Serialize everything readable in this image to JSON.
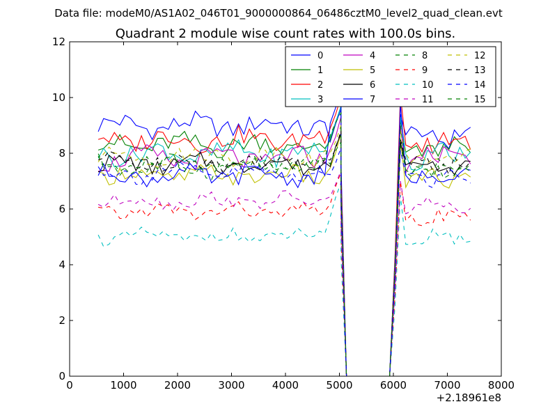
{
  "figure": {
    "suptitle": "Data file: modeM0/AS1A02_046T01_9000000864_06486cztM0_level2_quad_clean.evt",
    "title": "Quadrant 2 module wise count rates with 100.0s bins."
  },
  "chart_data": {
    "type": "line",
    "title": "Quadrant 2 module wise count rates with 100.0s bins.",
    "xlabel": "",
    "ylabel": "",
    "x_offset_label": "+2.18961e8",
    "xlim": [
      0,
      8000
    ],
    "ylim": [
      0,
      12
    ],
    "x_ticks": [
      0,
      1000,
      2000,
      3000,
      4000,
      5000,
      6000,
      7000,
      8000
    ],
    "y_ticks": [
      0,
      2,
      4,
      6,
      8,
      10,
      12
    ],
    "x_tick_labels": [
      "0",
      "1000",
      "2000",
      "3000",
      "4000",
      "5000",
      "6000",
      "7000",
      "8000"
    ],
    "y_tick_labels": [
      "0",
      "2",
      "4",
      "6",
      "8",
      "10",
      "12"
    ],
    "grid": false,
    "legend_position": "upper-right",
    "x_segments": {
      "seg1": {
        "start": 530,
        "step": 100,
        "count": 46
      },
      "gap_points": [
        5030,
        5130,
        5930,
        6030
      ],
      "seg2": {
        "start": 6130,
        "step": 100,
        "count": 14
      }
    },
    "series": [
      {
        "name": "0",
        "color": "#0000ff",
        "dash": "solid",
        "base1": 9.0,
        "base2": 8.6,
        "amp": 0.35,
        "peak": 9.5,
        "peak2": 9.4
      },
      {
        "name": "1",
        "color": "#008000",
        "dash": "solid",
        "base1": 8.3,
        "base2": 8.2,
        "amp": 0.35,
        "peak": 9.6,
        "peak2": 9.2
      },
      {
        "name": "2",
        "color": "#ff0000",
        "dash": "solid",
        "base1": 8.5,
        "base2": 8.4,
        "amp": 0.35,
        "peak": 9.9,
        "peak2": 10.1
      },
      {
        "name": "3",
        "color": "#00bfbf",
        "dash": "solid",
        "base1": 8.0,
        "base2": 7.9,
        "amp": 0.35,
        "peak": 9.7,
        "peak2": 9.3
      },
      {
        "name": "4",
        "color": "#bf00bf",
        "dash": "solid",
        "base1": 7.8,
        "base2": 7.8,
        "amp": 0.35,
        "peak": 9.2,
        "peak2": 9.0
      },
      {
        "name": "5",
        "color": "#bfbf00",
        "dash": "solid",
        "base1": 7.2,
        "base2": 7.1,
        "amp": 0.3,
        "peak": 8.6,
        "peak2": 8.5
      },
      {
        "name": "6",
        "color": "#000000",
        "dash": "solid",
        "base1": 7.6,
        "base2": 7.5,
        "amp": 0.3,
        "peak": 8.6,
        "peak2": 8.4
      },
      {
        "name": "7",
        "color": "#0000ff",
        "dash": "solid",
        "base1": 7.2,
        "base2": 7.1,
        "amp": 0.3,
        "peak": 10.2,
        "peak2": 9.8
      },
      {
        "name": "8",
        "color": "#008000",
        "dash": "dashed",
        "base1": 7.5,
        "base2": 7.3,
        "amp": 0.3,
        "peak": 8.5,
        "peak2": 8.3
      },
      {
        "name": "9",
        "color": "#ff0000",
        "dash": "dashed",
        "base1": 5.9,
        "base2": 5.7,
        "amp": 0.25,
        "peak": 7.2,
        "peak2": 7.0
      },
      {
        "name": "10",
        "color": "#00bfbf",
        "dash": "dashed",
        "base1": 5.0,
        "base2": 5.0,
        "amp": 0.25,
        "peak": 6.8,
        "peak2": 6.5
      },
      {
        "name": "11",
        "color": "#bf00bf",
        "dash": "dashed",
        "base1": 6.3,
        "base2": 6.1,
        "amp": 0.25,
        "peak": 7.3,
        "peak2": 7.0
      },
      {
        "name": "12",
        "color": "#bfbf00",
        "dash": "dashed",
        "base1": 7.9,
        "base2": 7.8,
        "amp": 0.3,
        "peak": 9.0,
        "peak2": 8.8
      },
      {
        "name": "13",
        "color": "#000000",
        "dash": "dashed",
        "base1": 7.7,
        "base2": 7.6,
        "amp": 0.3,
        "peak": 8.8,
        "peak2": 8.5
      },
      {
        "name": "14",
        "color": "#0000ff",
        "dash": "dashed",
        "base1": 7.3,
        "base2": 7.2,
        "amp": 0.3,
        "peak": 8.3,
        "peak2": 8.1
      },
      {
        "name": "15",
        "color": "#008000",
        "dash": "dashed",
        "base1": 7.6,
        "base2": 7.5,
        "amp": 0.3,
        "peak": 9.5,
        "peak2": 9.0
      }
    ]
  }
}
